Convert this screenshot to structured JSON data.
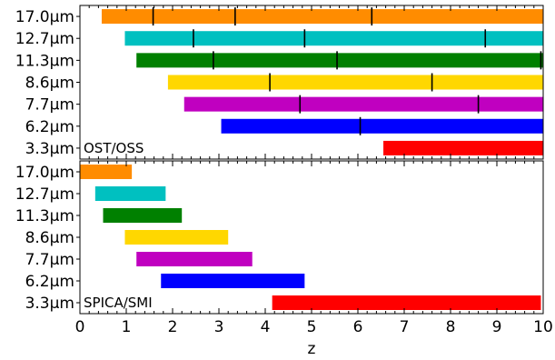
{
  "chart_data": {
    "type": "bar",
    "orientation": "horizontal-range",
    "xlabel": "z",
    "xlim": [
      0,
      10
    ],
    "xticks": [
      "0",
      "1",
      "2",
      "3",
      "4",
      "5",
      "6",
      "7",
      "8",
      "9",
      "10"
    ],
    "categories": [
      "3.3μm",
      "6.2μm",
      "7.7μm",
      "8.6μm",
      "11.3μm",
      "12.7μm",
      "17.0μm"
    ],
    "colors": {
      "3.3μm": "#ff0000",
      "6.2μm": "#0000ff",
      "7.7μm": "#c000c0",
      "8.6μm": "#ffd700",
      "11.3μm": "#008000",
      "12.7μm": "#00c0c0",
      "17.0μm": "#ff8c00"
    },
    "panels": [
      {
        "label": "OST/OSS",
        "bars": [
          {
            "category": "3.3μm",
            "z_start": 6.55,
            "z_end": 10.0,
            "markers": []
          },
          {
            "category": "6.2μm",
            "z_start": 3.05,
            "z_end": 10.0,
            "markers": [
              6.05
            ]
          },
          {
            "category": "7.7μm",
            "z_start": 2.25,
            "z_end": 10.0,
            "markers": [
              4.75,
              8.6
            ]
          },
          {
            "category": "8.6μm",
            "z_start": 1.9,
            "z_end": 10.0,
            "markers": [
              4.1,
              7.6
            ]
          },
          {
            "category": "11.3μm",
            "z_start": 1.22,
            "z_end": 10.0,
            "markers": [
              2.88,
              5.55,
              9.95
            ]
          },
          {
            "category": "12.7μm",
            "z_start": 0.97,
            "z_end": 10.0,
            "markers": [
              2.45,
              4.85,
              8.75
            ]
          },
          {
            "category": "17.0μm",
            "z_start": 0.47,
            "z_end": 10.0,
            "markers": [
              1.58,
              3.35,
              6.3
            ]
          }
        ]
      },
      {
        "label": "SPICA/SMI",
        "bars": [
          {
            "category": "3.3μm",
            "z_start": 4.15,
            "z_end": 9.95,
            "markers": []
          },
          {
            "category": "6.2μm",
            "z_start": 1.75,
            "z_end": 4.85,
            "markers": []
          },
          {
            "category": "7.7μm",
            "z_start": 1.22,
            "z_end": 3.72,
            "markers": []
          },
          {
            "category": "8.6μm",
            "z_start": 0.97,
            "z_end": 3.2,
            "markers": []
          },
          {
            "category": "11.3μm",
            "z_start": 0.5,
            "z_end": 2.2,
            "markers": []
          },
          {
            "category": "12.7μm",
            "z_start": 0.33,
            "z_end": 1.85,
            "markers": []
          },
          {
            "category": "17.0μm",
            "z_start": 0.0,
            "z_end": 1.12,
            "markers": []
          }
        ]
      }
    ]
  }
}
